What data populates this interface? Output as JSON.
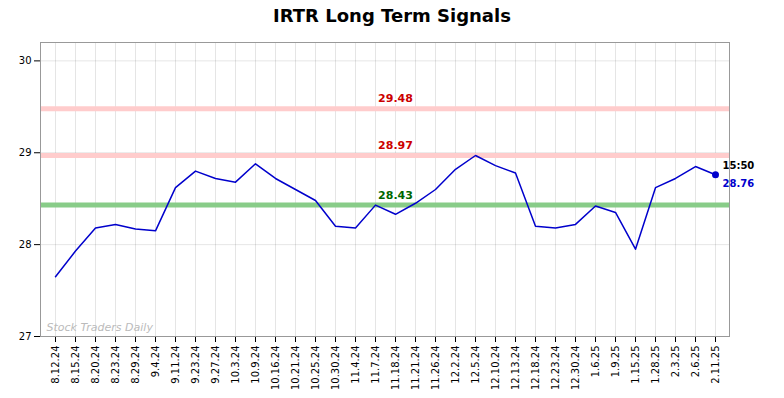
{
  "chart_data": {
    "type": "line",
    "title": "IRTR Long Term Signals",
    "categories": [
      "8.12.24",
      "8.15.24",
      "8.20.24",
      "8.23.24",
      "8.29.24",
      "9.4.24",
      "9.11.24",
      "9.23.24",
      "9.27.24",
      "10.3.24",
      "10.9.24",
      "10.16.24",
      "10.21.24",
      "10.25.24",
      "10.30.24",
      "11.4.24",
      "11.7.24",
      "11.18.24",
      "11.21.24",
      "11.26.24",
      "12.2.24",
      "12.5.24",
      "12.10.24",
      "12.13.24",
      "12.18.24",
      "12.23.24",
      "12.30.24",
      "1.6.25",
      "1.9.25",
      "1.15.25",
      "1.28.25",
      "2.3.25",
      "2.6.25",
      "2.11.25"
    ],
    "values": [
      27.65,
      27.93,
      28.18,
      28.22,
      28.17,
      28.15,
      28.62,
      28.8,
      28.72,
      28.68,
      28.88,
      28.72,
      28.6,
      28.48,
      28.2,
      28.18,
      28.43,
      28.33,
      28.45,
      28.6,
      28.82,
      28.97,
      28.86,
      28.78,
      28.2,
      28.18,
      28.22,
      28.42,
      28.35,
      27.95,
      28.62,
      28.72,
      28.85,
      28.76
    ],
    "color": "#0000cc",
    "ylim": [
      27.0,
      30.2
    ],
    "yticks": [
      27,
      28,
      29,
      30
    ],
    "grid": true,
    "hlines": [
      {
        "y": 29.48,
        "label": "29.48",
        "color": "#ffcccc",
        "label_color": "#cc0000"
      },
      {
        "y": 28.97,
        "label": "28.97",
        "color": "#ffcccc",
        "label_color": "#cc0000"
      },
      {
        "y": 28.43,
        "label": "28.43",
        "color": "#88cc88",
        "label_color": "#006600"
      }
    ],
    "last_point": {
      "time": "15:50",
      "value": 28.76
    },
    "watermark": "Stock Traders Daily"
  }
}
